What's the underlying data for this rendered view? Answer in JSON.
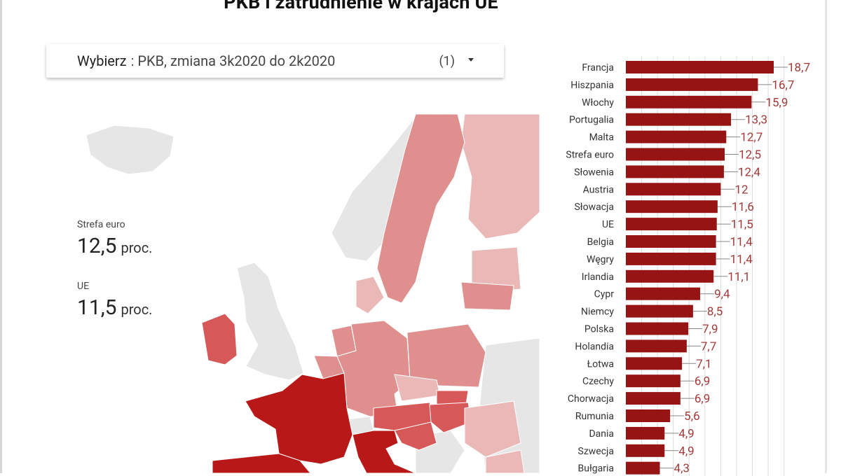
{
  "title": "PKB i zatrudnienie w krajach UE",
  "selector": {
    "label": "Wybierz",
    "value": ": PKB, zmiana 3k2020 do 2k2020",
    "count": "(1)"
  },
  "stats": [
    {
      "label": "Strefa euro",
      "value": "12,5",
      "unit": "proc."
    },
    {
      "label": "UE",
      "value": "11,5",
      "unit": "proc."
    }
  ],
  "colors": {
    "bar": "#971414",
    "map_land": "#e6e6e6",
    "map_light": "#ebb8b8",
    "map_mid": "#e08f8f",
    "map_dark": "#d75858",
    "map_darkest": "#b81818"
  },
  "chart_data": {
    "type": "bar",
    "orientation": "horizontal",
    "categories": [
      "Francja",
      "Hiszpania",
      "Włochy",
      "Portugalia",
      "Malta",
      "Strefa euro",
      "Słowenia",
      "Austria",
      "Słowacja",
      "UE",
      "Belgia",
      "Węgry",
      "Irlandia",
      "Cypr",
      "Niemcy",
      "Polska",
      "Holandia",
      "Łotwa",
      "Czechy",
      "Chorwacja",
      "Rumunia",
      "Dania",
      "Szwecja",
      "Bułgaria"
    ],
    "values": [
      18.7,
      16.7,
      15.9,
      13.3,
      12.7,
      12.5,
      12.4,
      12,
      11.6,
      11.5,
      11.4,
      11.4,
      11.1,
      9.4,
      8.5,
      7.9,
      7.7,
      7.1,
      6.9,
      6.9,
      5.6,
      4.9,
      4.9,
      4.3
    ],
    "labels": [
      "18,7",
      "16,7",
      "15,9",
      "13,3",
      "12,7",
      "12,5",
      "12,4",
      "12",
      "11,6",
      "11,5",
      "11,4",
      "11,4",
      "11,1",
      "9,4",
      "8,5",
      "7,9",
      "7,7",
      "7,1",
      "6,9",
      "6,9",
      "5,6",
      "4,9",
      "4,9",
      "4,3"
    ],
    "xlim": [
      0,
      20
    ]
  }
}
